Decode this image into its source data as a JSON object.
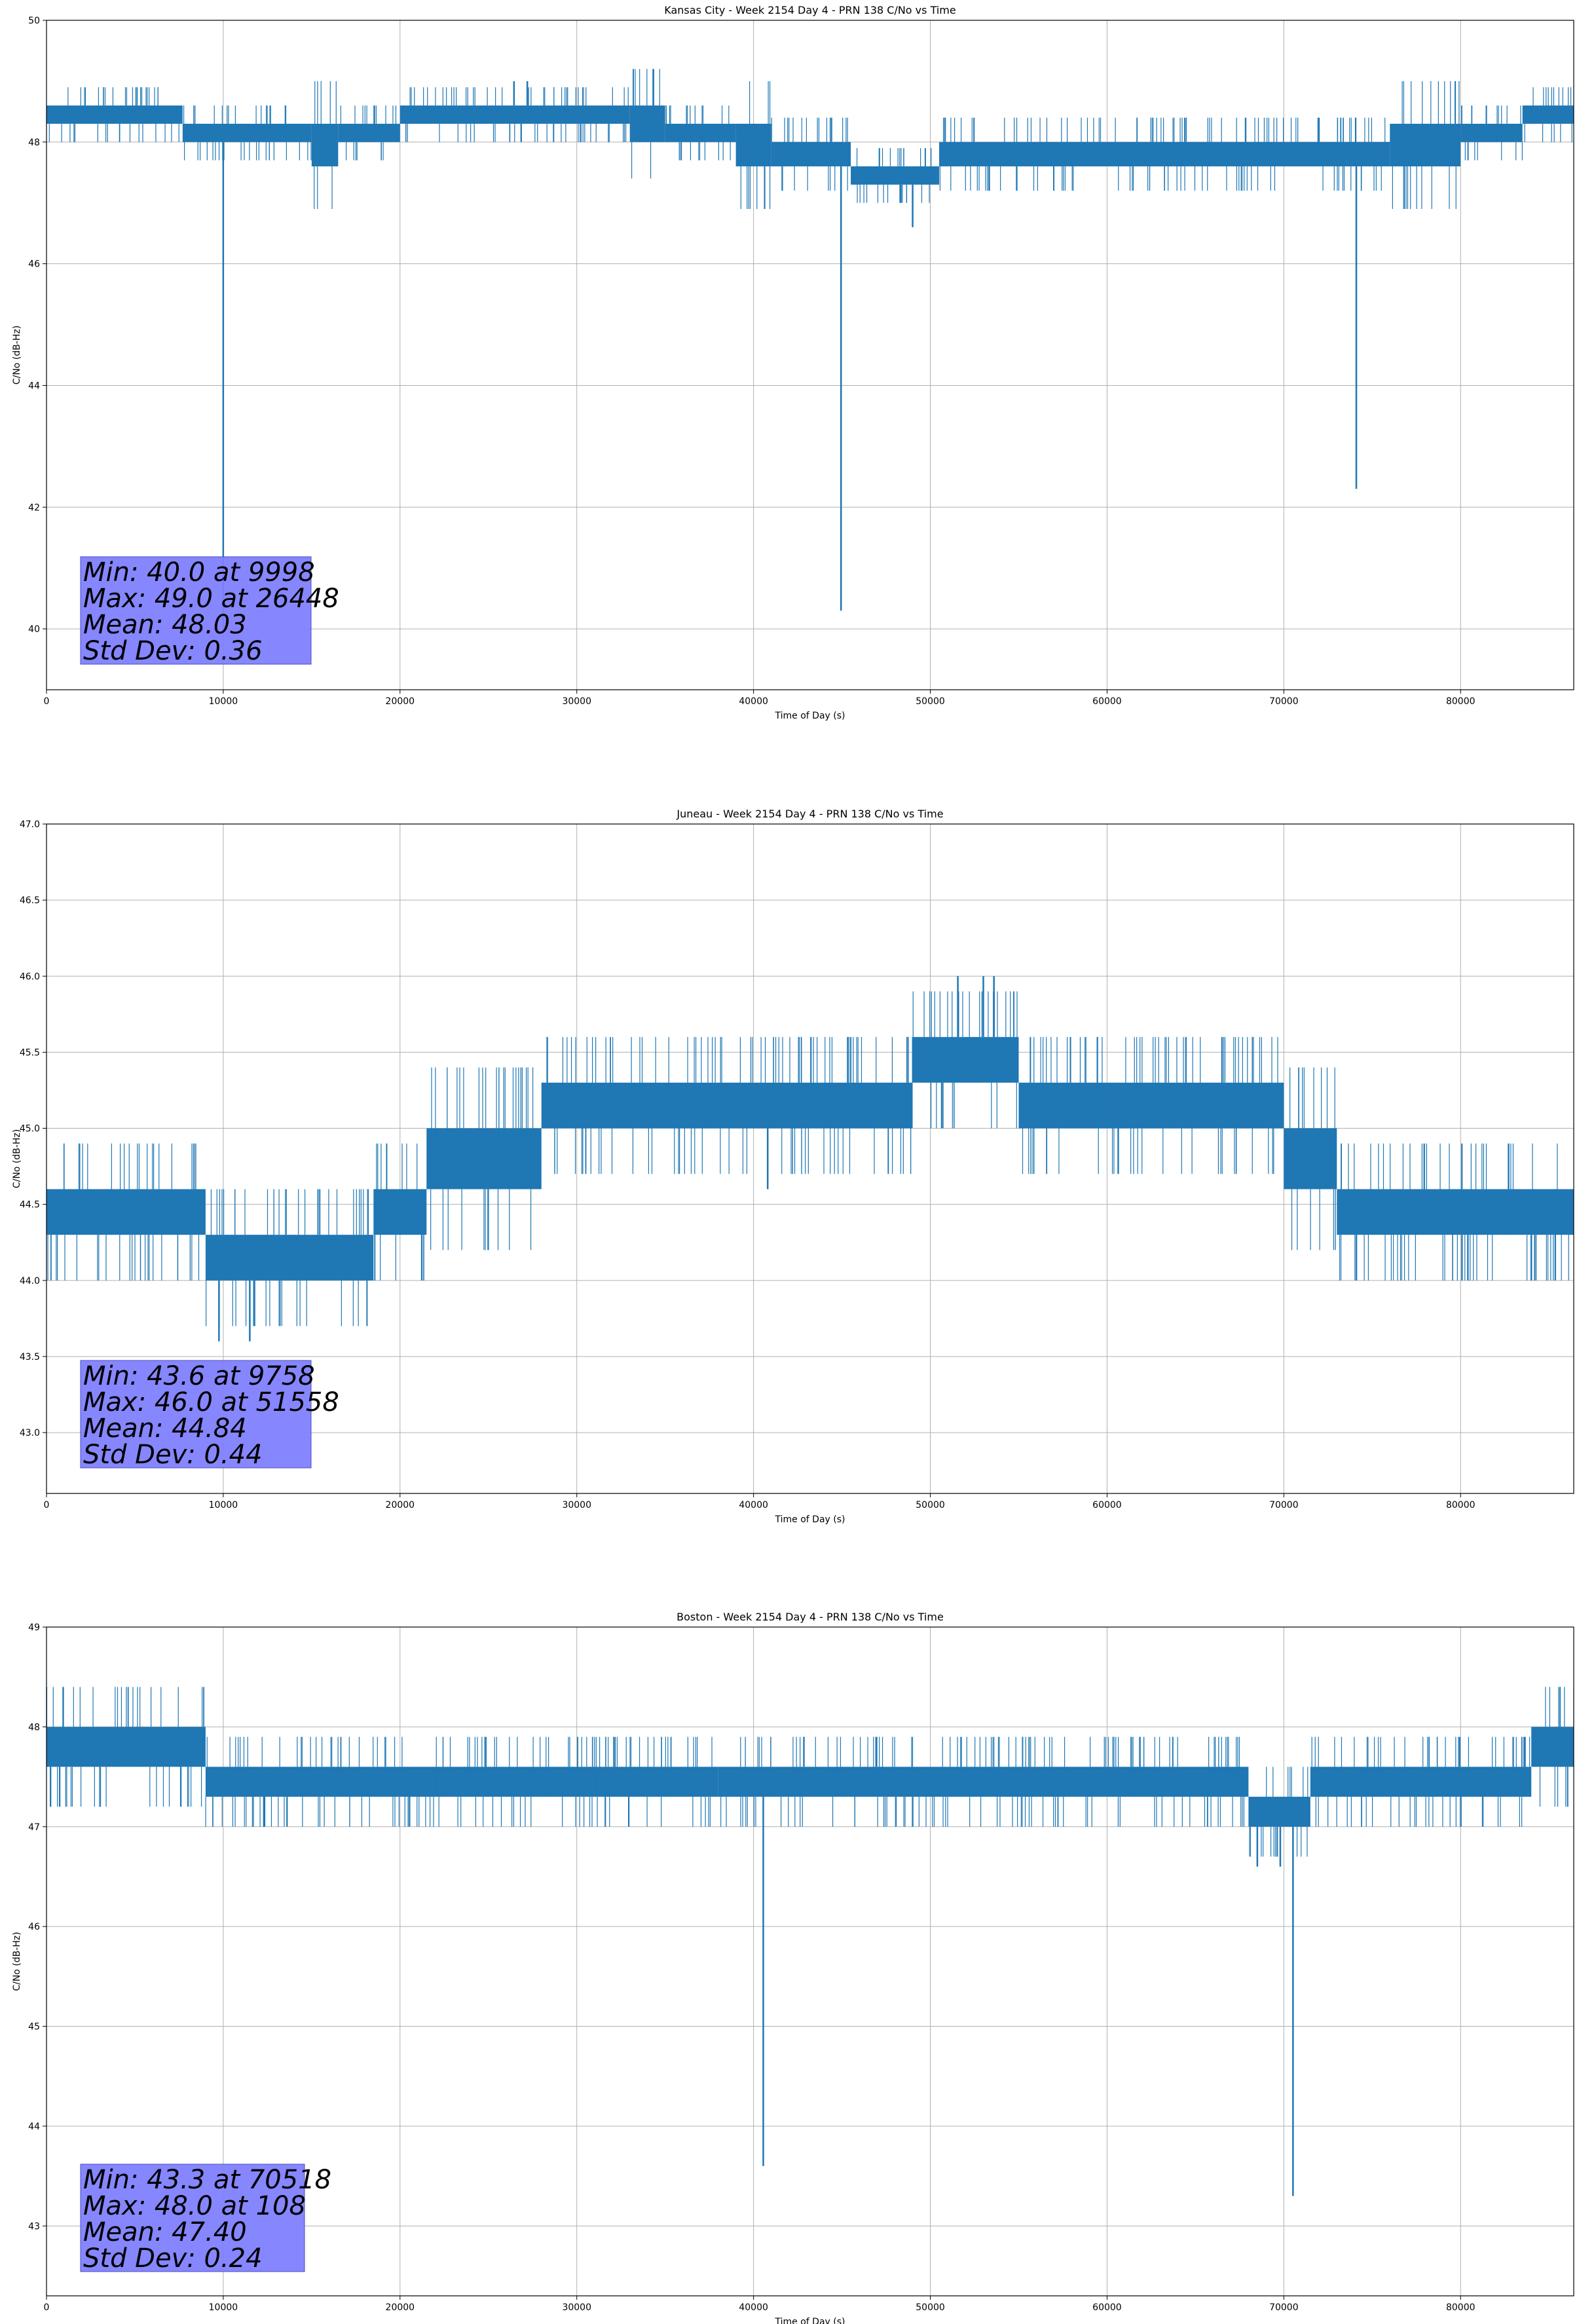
{
  "chart_data": [
    {
      "type": "line",
      "title": "Kansas City - Week 2154 Day 4 - PRN 138 C/No vs Time",
      "xlabel": "Time of Day (s)",
      "ylabel": "C/No (dB-Hz)",
      "xlim": [
        0,
        86400
      ],
      "ylim": [
        39,
        50
      ],
      "xticks": [
        "0",
        "10000",
        "20000",
        "30000",
        "40000",
        "50000",
        "60000",
        "70000",
        "80000"
      ],
      "yticks": [
        "40",
        "42",
        "44",
        "46",
        "48",
        "50"
      ],
      "grid": true,
      "line_color": "#1f77b4",
      "stats_box_color": "#8080ff",
      "stats": [
        "Min: 40.0 at 9998",
        "Max: 49.0 at 26448",
        "Mean: 48.03",
        "Std Dev: 0.36"
      ],
      "bands": [
        {
          "x": [
            0,
            7700
          ],
          "lo": 48.3,
          "hi": 48.6
        },
        {
          "x": [
            7700,
            15000
          ],
          "lo": 48.0,
          "hi": 48.3
        },
        {
          "x": [
            15000,
            16500
          ],
          "lo": 47.6,
          "hi": 48.3
        },
        {
          "x": [
            16500,
            20000
          ],
          "lo": 48.0,
          "hi": 48.3
        },
        {
          "x": [
            20000,
            33000
          ],
          "lo": 48.3,
          "hi": 48.6
        },
        {
          "x": [
            33000,
            35000
          ],
          "lo": 48.0,
          "hi": 48.6
        },
        {
          "x": [
            35000,
            39000
          ],
          "lo": 48.0,
          "hi": 48.3
        },
        {
          "x": [
            39000,
            41000
          ],
          "lo": 47.6,
          "hi": 48.3
        },
        {
          "x": [
            41000,
            45500
          ],
          "lo": 47.6,
          "hi": 48.0
        },
        {
          "x": [
            45500,
            50500
          ],
          "lo": 47.3,
          "hi": 47.6
        },
        {
          "x": [
            50500,
            76000
          ],
          "lo": 47.6,
          "hi": 48.0
        },
        {
          "x": [
            76000,
            80000
          ],
          "lo": 47.6,
          "hi": 48.3
        },
        {
          "x": [
            80000,
            83500
          ],
          "lo": 48.0,
          "hi": 48.3
        },
        {
          "x": [
            83500,
            86400
          ],
          "lo": 48.3,
          "hi": 48.6
        }
      ],
      "spikes": [
        {
          "x": 9998,
          "y": 40.0
        },
        {
          "x": 26448,
          "y": 49.0
        },
        {
          "x": 27200,
          "y": 49.0
        },
        {
          "x": 44950,
          "y": 40.3
        },
        {
          "x": 48300,
          "y": 47.0
        },
        {
          "x": 49000,
          "y": 46.6
        },
        {
          "x": 74100,
          "y": 42.3
        }
      ]
    },
    {
      "type": "line",
      "title": "Juneau - Week 2154 Day 4 - PRN 138 C/No vs Time",
      "xlabel": "Time of Day (s)",
      "ylabel": "C/No (dB-Hz)",
      "xlim": [
        0,
        86400
      ],
      "ylim": [
        42.6,
        47.0
      ],
      "xticks": [
        "0",
        "10000",
        "20000",
        "30000",
        "40000",
        "50000",
        "60000",
        "70000",
        "80000"
      ],
      "yticks": [
        "43.0",
        "43.5",
        "44.0",
        "44.5",
        "45.0",
        "45.5",
        "46.0",
        "46.5",
        "47.0"
      ],
      "grid": true,
      "line_color": "#1f77b4",
      "stats_box_color": "#8080ff",
      "stats": [
        "Min: 43.6 at 9758",
        "Max: 46.0 at 51558",
        "Mean: 44.84",
        "Std Dev: 0.44"
      ],
      "bands": [
        {
          "x": [
            0,
            9000
          ],
          "lo": 44.3,
          "hi": 44.6
        },
        {
          "x": [
            9000,
            18500
          ],
          "lo": 44.0,
          "hi": 44.3
        },
        {
          "x": [
            18500,
            21500
          ],
          "lo": 44.3,
          "hi": 44.6
        },
        {
          "x": [
            21500,
            28000
          ],
          "lo": 44.6,
          "hi": 45.0
        },
        {
          "x": [
            28000,
            49000
          ],
          "lo": 45.0,
          "hi": 45.3
        },
        {
          "x": [
            49000,
            55000
          ],
          "lo": 45.3,
          "hi": 45.6
        },
        {
          "x": [
            55000,
            60000
          ],
          "lo": 45.0,
          "hi": 45.3
        },
        {
          "x": [
            60000,
            70000
          ],
          "lo": 45.0,
          "hi": 45.3
        },
        {
          "x": [
            70000,
            73000
          ],
          "lo": 44.6,
          "hi": 45.0
        },
        {
          "x": [
            73000,
            86400
          ],
          "lo": 44.3,
          "hi": 44.6
        }
      ],
      "spikes": [
        {
          "x": 9758,
          "y": 43.6
        },
        {
          "x": 11500,
          "y": 43.6
        },
        {
          "x": 40800,
          "y": 44.6
        },
        {
          "x": 51558,
          "y": 46.0
        },
        {
          "x": 53000,
          "y": 46.0
        },
        {
          "x": 53600,
          "y": 46.0
        },
        {
          "x": 84000,
          "y": 44.0
        }
      ]
    },
    {
      "type": "line",
      "title": "Boston - Week 2154 Day 4 - PRN 138 C/No vs Time",
      "xlabel": "Time of Day (s)",
      "ylabel": "C/No (dB-Hz)",
      "xlim": [
        0,
        86400
      ],
      "ylim": [
        42.3,
        49
      ],
      "xticks": [
        "0",
        "10000",
        "20000",
        "30000",
        "40000",
        "50000",
        "60000",
        "70000",
        "80000"
      ],
      "yticks": [
        "43",
        "44",
        "45",
        "46",
        "47",
        "48",
        "49"
      ],
      "grid": true,
      "line_color": "#1f77b4",
      "stats_box_color": "#8080ff",
      "stats": [
        "Min: 43.3 at 70518",
        "Max: 48.0 at 108",
        "Mean: 47.40",
        "Std Dev: 0.24"
      ],
      "bands": [
        {
          "x": [
            0,
            9000
          ],
          "lo": 47.6,
          "hi": 48.0
        },
        {
          "x": [
            9000,
            38000
          ],
          "lo": 47.3,
          "hi": 47.6
        },
        {
          "x": [
            38000,
            56000
          ],
          "lo": 47.3,
          "hi": 47.6
        },
        {
          "x": [
            56000,
            68000
          ],
          "lo": 47.3,
          "hi": 47.6
        },
        {
          "x": [
            68000,
            71500
          ],
          "lo": 47.0,
          "hi": 47.3
        },
        {
          "x": [
            71500,
            84000
          ],
          "lo": 47.3,
          "hi": 47.6
        },
        {
          "x": [
            84000,
            86400
          ],
          "lo": 47.6,
          "hi": 48.0
        }
      ],
      "spikes": [
        {
          "x": 40550,
          "y": 43.6
        },
        {
          "x": 68500,
          "y": 46.6
        },
        {
          "x": 69800,
          "y": 46.6
        },
        {
          "x": 70518,
          "y": 43.3
        }
      ]
    }
  ]
}
